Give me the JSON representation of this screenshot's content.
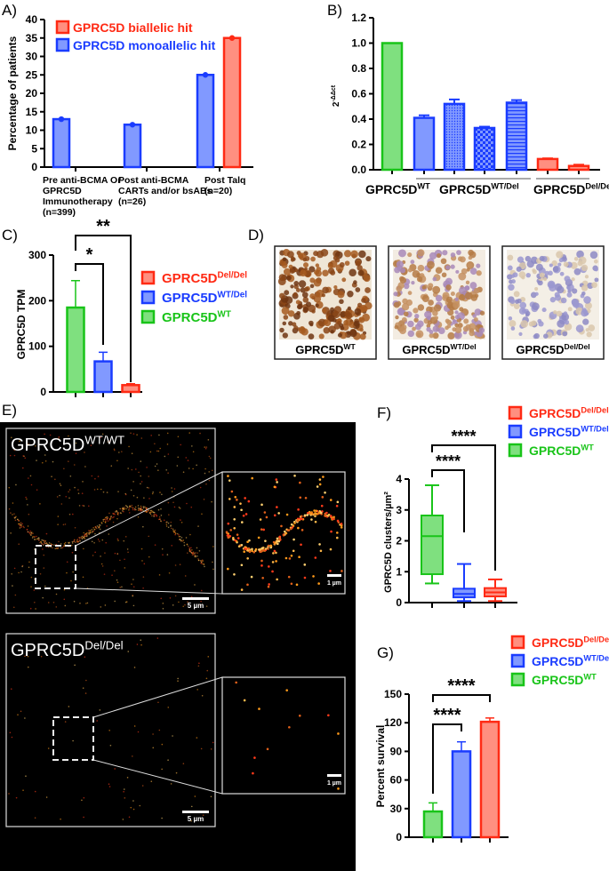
{
  "panel_labels": {
    "A": "A)",
    "B": "B)",
    "C": "C)",
    "D": "D)",
    "E": "E)",
    "F": "F)",
    "G": "G)"
  },
  "genotypes": {
    "wt": {
      "base": "GPRC5D",
      "sup": "WT"
    },
    "het": {
      "base": "GPRC5D",
      "sup": "WT/Del"
    },
    "del": {
      "base": "GPRC5D",
      "sup": "Del/Del"
    },
    "wtwt": {
      "base": "GPRC5D",
      "sup": "WT/WT"
    }
  },
  "colors": {
    "wt": {
      "fill": "#7fe07f",
      "stroke": "#19c419",
      "text": "#19c419"
    },
    "het": {
      "fill": "#8199ff",
      "stroke": "#1a3cff",
      "text": "#1a3cff"
    },
    "del": {
      "fill": "#ff8f80",
      "stroke": "#ff2a14",
      "text": "#ff2a14"
    }
  },
  "chart_data": [
    {
      "panel": "A",
      "type": "bar",
      "ylabel": "Percentage of patients",
      "ylim": [
        0,
        40
      ],
      "yticks": [
        0,
        5,
        10,
        15,
        20,
        25,
        30,
        35,
        40
      ],
      "categories": [
        [
          "Pre anti-BCMA Or",
          "GPRC5D",
          "Immunotherapy",
          "(n=399)"
        ],
        [
          "Post anti-BCMA",
          "CARTs and/or bsABs",
          "(n=26)"
        ],
        [
          "Post Talq",
          "(n=20)"
        ]
      ],
      "series": [
        {
          "name": "GPRC5D monoallelic hit",
          "color": "het",
          "values": [
            13,
            11.5,
            25
          ]
        },
        {
          "name": "GPRC5D biallelic hit",
          "color": "del",
          "values": [
            null,
            null,
            35
          ]
        }
      ],
      "legend_order": [
        1,
        0
      ],
      "legend": "top",
      "grid": false
    },
    {
      "panel": "B",
      "type": "bar",
      "ylabel": {
        "base": "2",
        "sup": "-ΔΔct"
      },
      "ylim": [
        0,
        1.2
      ],
      "yticks": [
        "0.0",
        "0.2",
        "0.4",
        "0.6",
        "0.8",
        "1.0",
        "1.2"
      ],
      "values": [
        1.0,
        0.41,
        0.52,
        0.33,
        0.53,
        0.085,
        0.03
      ],
      "error_upper": [
        null,
        0.43,
        0.555,
        0.34,
        0.55,
        0.09,
        0.04
      ],
      "bar_genotype": [
        "wt",
        "het",
        "het",
        "het",
        "het",
        "del",
        "del"
      ],
      "bar_pattern": [
        "solid",
        "solid",
        "dots",
        "checker",
        "stripes",
        "solid",
        "solid"
      ],
      "groups": [
        {
          "genotype": "wt",
          "bars": 1
        },
        {
          "genotype": "het",
          "bars": 4
        },
        {
          "genotype": "del",
          "bars": 2
        }
      ],
      "grid": false
    },
    {
      "panel": "C",
      "type": "bar",
      "ylabel": "GPRC5D TPM",
      "ylim": [
        0,
        300
      ],
      "yticks": [
        0,
        100,
        200,
        300
      ],
      "bar_genotype": [
        "wt",
        "het",
        "del"
      ],
      "values": [
        185,
        67,
        15
      ],
      "error_upper": [
        244,
        87,
        18
      ],
      "significance": [
        {
          "from": 0,
          "to": 1,
          "label": "*"
        },
        {
          "from": 0,
          "to": 2,
          "label": "**"
        }
      ],
      "legend_order": [
        "del",
        "het",
        "wt"
      ],
      "legend": "right",
      "grid": false
    },
    {
      "panel": "F",
      "type": "box",
      "ylabel": "GPRC5D clusters/µm²",
      "ylim": [
        0,
        4
      ],
      "yticks": [
        0,
        1,
        2,
        3,
        4
      ],
      "boxes": [
        {
          "genotype": "wt",
          "min": 0.62,
          "q1": 0.92,
          "median": 2.15,
          "q3": 2.82,
          "max": 3.8
        },
        {
          "genotype": "het",
          "min": 0.05,
          "q1": 0.17,
          "median": 0.28,
          "q3": 0.45,
          "max": 1.25
        },
        {
          "genotype": "del",
          "min": 0.05,
          "q1": 0.2,
          "median": 0.33,
          "q3": 0.47,
          "max": 0.75
        }
      ],
      "significance": [
        {
          "from": 0,
          "to": 1,
          "label": "****"
        },
        {
          "from": 0,
          "to": 2,
          "label": "****"
        }
      ],
      "legend_order": [
        "del",
        "het",
        "wt"
      ],
      "legend": "top-right",
      "grid": false
    },
    {
      "panel": "G",
      "type": "bar",
      "ylabel": "Percent survival",
      "ylim": [
        0,
        150
      ],
      "yticks": [
        0,
        30,
        60,
        90,
        120,
        150
      ],
      "bar_genotype": [
        "wt",
        "het",
        "del"
      ],
      "values": [
        27,
        90,
        121
      ],
      "error_upper": [
        36,
        100,
        125
      ],
      "significance": [
        {
          "from": 0,
          "to": 1,
          "label": "****"
        },
        {
          "from": 0,
          "to": 2,
          "label": "****"
        }
      ],
      "legend_order": [
        "del",
        "het",
        "wt"
      ],
      "legend": "top-right",
      "grid": false
    }
  ],
  "panel_D": {
    "images": [
      {
        "genotype": "wt",
        "stain": "strong"
      },
      {
        "genotype": "het",
        "stain": "moderate"
      },
      {
        "genotype": "del",
        "stain": "none"
      }
    ]
  },
  "panel_E": {
    "rows": [
      {
        "genotype": "wtwt",
        "scale_main": "5 µm",
        "scale_inset": "1 µm",
        "signal": "high"
      },
      {
        "genotype": "del",
        "scale_main": "5 µm",
        "scale_inset": "1 µm",
        "signal": "low"
      }
    ]
  }
}
